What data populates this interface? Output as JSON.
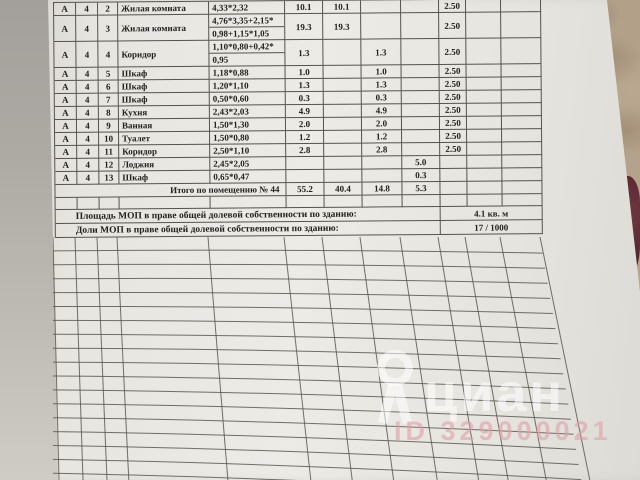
{
  "table": {
    "rows": [
      {
        "lit": "А",
        "floor": "4",
        "num": "2",
        "name": "Жилая комната",
        "formula": "4,33*2,32",
        "total": "10.1",
        "living": "10.1",
        "aux": "",
        "loggia": "",
        "height": "2.50"
      },
      {
        "lit": "А",
        "floor": "4",
        "num": "3",
        "name": "Жилая комната",
        "formula": "4,76*3,35+2,15*",
        "formula2": "0,98+1,15*1,05",
        "total": "19.3",
        "living": "19.3",
        "aux": "",
        "loggia": "",
        "height": "2.50"
      },
      {
        "lit": "А",
        "floor": "4",
        "num": "4",
        "name": "Коридор",
        "formula": "1,10*0,80+0,42*",
        "formula2": "0,95",
        "total": "1.3",
        "living": "",
        "aux": "1.3",
        "loggia": "",
        "height": "2.50"
      },
      {
        "lit": "А",
        "floor": "4",
        "num": "5",
        "name": "Шкаф",
        "formula": "1,18*0,88",
        "total": "1.0",
        "living": "",
        "aux": "1.0",
        "loggia": "",
        "height": "2.50"
      },
      {
        "lit": "А",
        "floor": "4",
        "num": "6",
        "name": "Шкаф",
        "formula": "1,20*1,10",
        "total": "1.3",
        "living": "",
        "aux": "1.3",
        "loggia": "",
        "height": "2.50"
      },
      {
        "lit": "А",
        "floor": "4",
        "num": "7",
        "name": "Шкаф",
        "formula": "0,50*0,60",
        "total": "0.3",
        "living": "",
        "aux": "0.3",
        "loggia": "",
        "height": "2.50"
      },
      {
        "lit": "А",
        "floor": "4",
        "num": "8",
        "name": "Кухня",
        "formula": "2,43*2,03",
        "total": "4.9",
        "living": "",
        "aux": "4.9",
        "loggia": "",
        "height": "2.50"
      },
      {
        "lit": "А",
        "floor": "4",
        "num": "9",
        "name": "Ванная",
        "formula": "1,50*1,30",
        "total": "2.0",
        "living": "",
        "aux": "2.0",
        "loggia": "",
        "height": "2.50"
      },
      {
        "lit": "А",
        "floor": "4",
        "num": "10",
        "name": "Туалет",
        "formula": "1,50*0,80",
        "total": "1.2",
        "living": "",
        "aux": "1.2",
        "loggia": "",
        "height": "2.50"
      },
      {
        "lit": "А",
        "floor": "4",
        "num": "11",
        "name": "Коридор",
        "formula": "2,50*1,10",
        "total": "2.8",
        "living": "",
        "aux": "2.8",
        "loggia": "",
        "height": "2.50"
      },
      {
        "lit": "А",
        "floor": "4",
        "num": "12",
        "name": "Лоджия",
        "formula": "2,45*2,05",
        "total": "",
        "living": "",
        "aux": "",
        "loggia": "5.0",
        "height": ""
      },
      {
        "lit": "А",
        "floor": "4",
        "num": "13",
        "name": "Шкаф",
        "formula": "0,65*0,47",
        "total": "",
        "living": "",
        "aux": "",
        "loggia": "0.3",
        "height": ""
      }
    ],
    "totals": {
      "label": "Итого по помещению № 44",
      "total": "55.2",
      "living": "40.4",
      "aux": "14.8",
      "loggia": "5.3"
    }
  },
  "mop": {
    "area_label": "Площадь МОП в праве общей долевой собственности по зданию:",
    "area_value": "4.1 кв. м",
    "share_label": "Доли МОП в праве общей долевой собственности по зданию:",
    "share_value": "17 / 1000"
  },
  "watermark": {
    "brand": "циан",
    "id_text": "ID 329000021"
  },
  "colors": {
    "paper": "#eceae5",
    "line": "#56534e",
    "carpet": "#b5a28b",
    "maroon_object": "#5c2a33",
    "watermark_white": "rgba(255,255,255,0.55)",
    "watermark_pink": "rgba(224,158,166,0.6)"
  }
}
